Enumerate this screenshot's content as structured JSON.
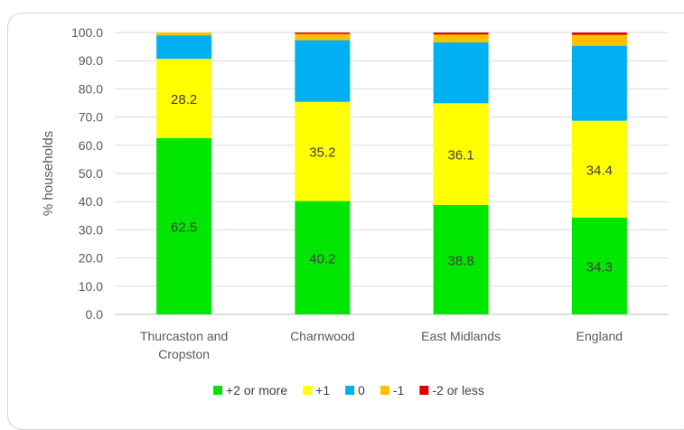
{
  "chart_data": {
    "type": "bar",
    "stacked": true,
    "ylabel": "% households",
    "ylim": [
      0,
      100
    ],
    "ytick_step": 10,
    "ytick_format": "0.0",
    "grid": true,
    "legend_position": "bottom",
    "categories": [
      [
        "Thurcaston and",
        "Cropston"
      ],
      [
        "Charnwood"
      ],
      [
        "East Midlands"
      ],
      [
        "England"
      ]
    ],
    "series": [
      {
        "name": "+2 or more",
        "color": "#00e600",
        "values": [
          62.5,
          40.2,
          38.8,
          34.3
        ],
        "labels": [
          "62.5",
          "40.2",
          "38.8",
          "34.3"
        ]
      },
      {
        "name": "+1",
        "color": "#ffff00",
        "values": [
          28.2,
          35.2,
          36.1,
          34.4
        ],
        "labels": [
          "28.2",
          "35.2",
          "36.1",
          "34.4"
        ]
      },
      {
        "name": "0",
        "color": "#00b0f0",
        "values": [
          8.3,
          21.9,
          21.6,
          26.6
        ],
        "labels": [
          "",
          "",
          "",
          ""
        ]
      },
      {
        "name": "-1",
        "color": "#ffc000",
        "values": [
          1.0,
          2.2,
          2.8,
          3.9
        ],
        "labels": [
          "",
          "",
          "",
          ""
        ]
      },
      {
        "name": "-2 or less",
        "color": "#e00000",
        "values": [
          0.0,
          0.5,
          0.7,
          0.8
        ],
        "labels": [
          "",
          "",
          "",
          ""
        ]
      }
    ]
  }
}
